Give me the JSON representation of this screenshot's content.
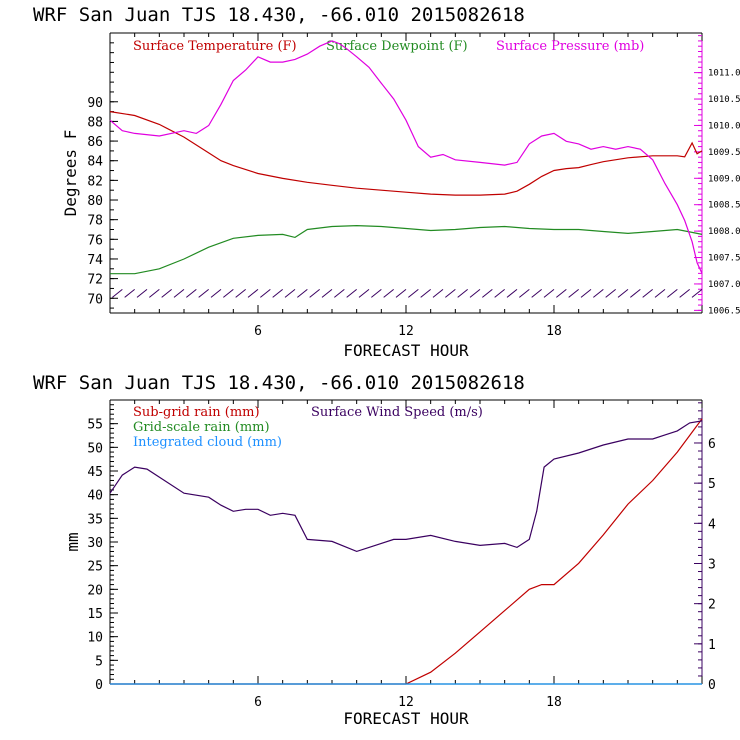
{
  "chart_data": [
    {
      "type": "line",
      "title": "WRF  San Juan TJS  18.430, -66.010  2015082618",
      "xlabel": "FORECAST HOUR",
      "ylabel": "Degrees F",
      "xlim": [
        0,
        24
      ],
      "ylim": [
        68.5,
        97
      ],
      "y2lim": [
        1006.45,
        1011.75
      ],
      "xticks": [
        "6",
        "12",
        "18"
      ],
      "yticks": [
        "70",
        "72",
        "74",
        "76",
        "78",
        "80",
        "82",
        "84",
        "86",
        "88",
        "90"
      ],
      "y2ticks": [
        "1006.5",
        "1007.0",
        "1007.5",
        "1008.0",
        "1008.5",
        "1009.0",
        "1009.5",
        "1010.0",
        "1010.5",
        "1011.0"
      ],
      "grid": false,
      "legend_position": "top",
      "series": [
        {
          "name": "Surface Temperature (F)",
          "color": "#c00000",
          "axis": "left",
          "x": [
            0,
            1,
            2,
            3,
            4,
            4.5,
            5,
            6,
            7,
            8,
            9,
            10,
            11,
            12,
            13,
            14,
            15,
            16,
            16.5,
            17,
            17.5,
            18,
            18.5,
            19,
            19.5,
            20,
            21,
            22,
            23,
            23.3,
            23.6,
            23.8,
            24
          ],
          "values": [
            89,
            88.6,
            87.7,
            86.4,
            84.8,
            84,
            83.5,
            82.7,
            82.2,
            81.8,
            81.5,
            81.2,
            81.0,
            80.8,
            80.6,
            80.5,
            80.5,
            80.6,
            80.9,
            81.6,
            82.4,
            83.0,
            83.2,
            83.3,
            83.6,
            83.9,
            84.3,
            84.5,
            84.5,
            84.4,
            85.8,
            84.7,
            85
          ]
        },
        {
          "name": "Surface Dewpoint (F)",
          "color": "#228b22",
          "axis": "left",
          "x": [
            0,
            1,
            2,
            3,
            4,
            5,
            6,
            7,
            7.5,
            8,
            9,
            10,
            11,
            12,
            13,
            14,
            15,
            16,
            17,
            18,
            19,
            20,
            21,
            22,
            23,
            23.6,
            24
          ],
          "values": [
            72.5,
            72.5,
            73.0,
            74.0,
            75.2,
            76.1,
            76.4,
            76.5,
            76.2,
            77.0,
            77.3,
            77.4,
            77.3,
            77.1,
            76.9,
            77.0,
            77.2,
            77.3,
            77.1,
            77.0,
            77.0,
            76.8,
            76.6,
            76.8,
            77.0,
            76.7,
            76.5
          ]
        },
        {
          "name": "Surface Pressure (mb)",
          "color": "#e000e0",
          "axis": "right",
          "x": [
            0,
            0.5,
            1,
            2,
            3,
            3.5,
            4,
            4.5,
            5,
            5.5,
            6,
            6.5,
            7,
            7.5,
            8,
            8.5,
            9,
            9.3,
            9.6,
            10,
            10.5,
            11,
            11.5,
            12,
            12.5,
            13,
            13.5,
            14,
            15,
            16,
            16.5,
            17,
            17.5,
            18,
            18.5,
            19,
            19.5,
            20,
            20.5,
            21,
            21.5,
            22,
            22.5,
            23,
            23.3,
            23.6,
            23.8,
            24
          ],
          "values": [
            1010.1,
            1009.9,
            1009.85,
            1009.8,
            1009.9,
            1009.85,
            1010.0,
            1010.4,
            1010.85,
            1011.05,
            1011.3,
            1011.2,
            1011.2,
            1011.25,
            1011.35,
            1011.5,
            1011.6,
            1011.55,
            1011.45,
            1011.3,
            1011.1,
            1010.8,
            1010.5,
            1010.1,
            1009.6,
            1009.4,
            1009.45,
            1009.35,
            1009.3,
            1009.25,
            1009.3,
            1009.65,
            1009.8,
            1009.85,
            1009.7,
            1009.65,
            1009.55,
            1009.6,
            1009.55,
            1009.6,
            1009.55,
            1009.35,
            1008.9,
            1008.5,
            1008.2,
            1007.8,
            1007.4,
            1007.2
          ]
        }
      ],
      "wind_barbs": {
        "note": "Wind barbs",
        "x": [
          0.5,
          1.0,
          1.5,
          2.0,
          2.5,
          3.0,
          3.5,
          4.0,
          4.5,
          5.0,
          5.5,
          6.0,
          6.5,
          7.0,
          7.5,
          8.0,
          8.5,
          9.0,
          9.5,
          10.0,
          10.5,
          11.0,
          11.5,
          12.0,
          12.5,
          13.0,
          13.5,
          14.0,
          14.5,
          15.0,
          15.5,
          16.0,
          16.5,
          17.0,
          17.5,
          18.0,
          18.5,
          19.0,
          19.5,
          20.0,
          20.5,
          21.0,
          21.5,
          22.0,
          22.5,
          23.0,
          23.5,
          24.0
        ]
      }
    },
    {
      "type": "line",
      "title": "WRF  San Juan TJS  18.430, -66.010  2015082618",
      "xlabel": "FORECAST HOUR",
      "ylabel": "mm",
      "xlim": [
        0,
        24
      ],
      "ylim": [
        0,
        60
      ],
      "y2lim": [
        0,
        7.07
      ],
      "xticks": [
        "6",
        "12",
        "18"
      ],
      "yticks": [
        "0",
        "5",
        "10",
        "15",
        "20",
        "25",
        "30",
        "35",
        "40",
        "45",
        "50",
        "55"
      ],
      "y2ticks": [
        "0",
        "1",
        "2",
        "3",
        "4",
        "5",
        "6"
      ],
      "grid": false,
      "legend_position": "top-left",
      "series": [
        {
          "name": "Sub-grid rain (mm)",
          "color": "#c00000",
          "axis": "left",
          "x": [
            0,
            12,
            13,
            14,
            15,
            16,
            17,
            17.5,
            18,
            19,
            20,
            21,
            22,
            23,
            24
          ],
          "values": [
            0,
            0,
            2.5,
            6.5,
            11,
            15.5,
            20,
            21,
            21,
            25.5,
            31.5,
            38,
            43,
            49,
            56
          ]
        },
        {
          "name": "Grid-scale rain (mm)",
          "color": "#228b22",
          "axis": "left",
          "x": [
            0,
            24
          ],
          "values": [
            0,
            0
          ]
        },
        {
          "name": "Integrated cloud (mm)",
          "color": "#1e90ff",
          "axis": "left",
          "x": [
            0,
            24
          ],
          "values": [
            0,
            0
          ]
        },
        {
          "name": "Surface Wind Speed (m/s)",
          "color": "#3a0060",
          "axis": "right",
          "x": [
            0,
            0.5,
            1,
            1.5,
            2,
            3,
            4,
            4.5,
            5,
            5.5,
            6,
            6.5,
            7,
            7.5,
            8,
            9,
            10,
            10.5,
            11,
            11.5,
            12,
            13,
            14,
            15,
            16,
            16.5,
            17,
            17.3,
            17.6,
            18,
            19,
            20,
            21,
            22,
            22.5,
            23,
            23.5,
            24
          ],
          "values": [
            4.75,
            5.2,
            5.4,
            5.35,
            5.15,
            4.75,
            4.65,
            4.45,
            4.3,
            4.35,
            4.35,
            4.2,
            4.25,
            4.2,
            3.6,
            3.55,
            3.3,
            3.4,
            3.5,
            3.6,
            3.6,
            3.7,
            3.55,
            3.45,
            3.5,
            3.4,
            3.6,
            4.3,
            5.4,
            5.6,
            5.75,
            5.95,
            6.1,
            6.1,
            6.2,
            6.3,
            6.5,
            6.55
          ]
        }
      ]
    }
  ]
}
